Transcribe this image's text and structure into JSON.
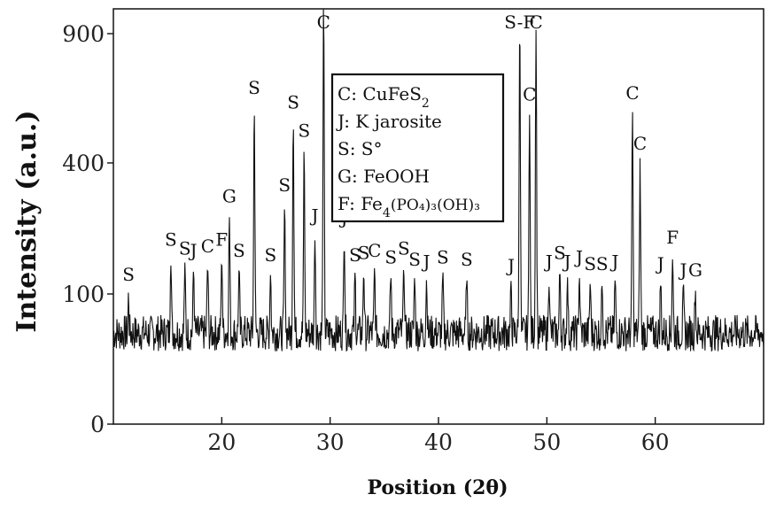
{
  "chart_data": {
    "type": "line",
    "title": "",
    "xlabel": "Position (2θ)",
    "ylabel": "Intensity (a.u.)",
    "xlim": [
      10,
      70
    ],
    "ylim": [
      0,
      1000
    ],
    "x_ticks": [
      "20",
      "30",
      "40",
      "50",
      "60"
    ],
    "y_ticks": [
      "0",
      "100",
      "400",
      "900"
    ],
    "grid": false,
    "baseline": 70,
    "noise": 14,
    "peaks": [
      {
        "x": 11.4,
        "y": 30,
        "label": "S"
      },
      {
        "x": 15.3,
        "y": 110,
        "label": "S"
      },
      {
        "x": 16.6,
        "y": 90,
        "label": "S"
      },
      {
        "x": 17.4,
        "y": 85,
        "label": "J"
      },
      {
        "x": 18.7,
        "y": 95,
        "label": "C"
      },
      {
        "x": 20.0,
        "y": 110,
        "label": "F"
      },
      {
        "x": 20.7,
        "y": 210,
        "label": "G"
      },
      {
        "x": 21.6,
        "y": 85,
        "label": "S"
      },
      {
        "x": 23.0,
        "y": 555,
        "label": "S"
      },
      {
        "x": 24.5,
        "y": 75,
        "label": "S"
      },
      {
        "x": 25.8,
        "y": 235,
        "label": "S"
      },
      {
        "x": 26.6,
        "y": 500,
        "label": "S"
      },
      {
        "x": 27.6,
        "y": 390,
        "label": "S"
      },
      {
        "x": 28.6,
        "y": 165,
        "label": "J"
      },
      {
        "x": 29.4,
        "y": 990,
        "label": "C"
      },
      {
        "x": 31.3,
        "y": 160,
        "label": "J"
      },
      {
        "x": 32.3,
        "y": 75,
        "label": "S"
      },
      {
        "x": 33.1,
        "y": 80,
        "label": "S"
      },
      {
        "x": 34.1,
        "y": 85,
        "label": "C"
      },
      {
        "x": 35.6,
        "y": 70,
        "label": "S"
      },
      {
        "x": 36.8,
        "y": 90,
        "label": "S"
      },
      {
        "x": 37.8,
        "y": 65,
        "label": "S"
      },
      {
        "x": 38.9,
        "y": 60,
        "label": "J"
      },
      {
        "x": 40.4,
        "y": 70,
        "label": "S"
      },
      {
        "x": 42.6,
        "y": 65,
        "label": "S"
      },
      {
        "x": 46.7,
        "y": 50,
        "label": "J"
      },
      {
        "x": 47.5,
        "y": 905,
        "label": "S-F"
      },
      {
        "x": 48.4,
        "y": 530,
        "label": "C"
      },
      {
        "x": 49.0,
        "y": 850,
        "label": "C"
      },
      {
        "x": 50.2,
        "y": 60,
        "label": "J"
      },
      {
        "x": 51.2,
        "y": 80,
        "label": "S"
      },
      {
        "x": 51.9,
        "y": 60,
        "label": "J"
      },
      {
        "x": 53.0,
        "y": 70,
        "label": "J"
      },
      {
        "x": 54.0,
        "y": 55,
        "label": "S"
      },
      {
        "x": 55.1,
        "y": 55,
        "label": "S"
      },
      {
        "x": 56.3,
        "y": 60,
        "label": "J"
      },
      {
        "x": 57.9,
        "y": 535,
        "label": "C"
      },
      {
        "x": 58.6,
        "y": 340,
        "label": "C"
      },
      {
        "x": 60.5,
        "y": 55,
        "label": "J"
      },
      {
        "x": 61.6,
        "y": 115,
        "label": "F"
      },
      {
        "x": 62.6,
        "y": 40,
        "label": "J"
      },
      {
        "x": 63.7,
        "y": 40,
        "label": "G"
      }
    ],
    "legend": {
      "placement": "top-center",
      "entries": [
        {
          "key": "C",
          "name": "CuFeS",
          "sub": "2",
          "tail": ""
        },
        {
          "key": "J",
          "name": "K jarosite",
          "sub": "",
          "tail": ""
        },
        {
          "key": "S",
          "name": "S°",
          "sub": "",
          "tail": ""
        },
        {
          "key": "G",
          "name": "FeOOH",
          "sub": "",
          "tail": ""
        },
        {
          "key": "F",
          "name": "Fe",
          "sub": "4",
          "tail": "(PO₄)₃(OH)₃"
        }
      ]
    },
    "line_color": "#111111"
  }
}
